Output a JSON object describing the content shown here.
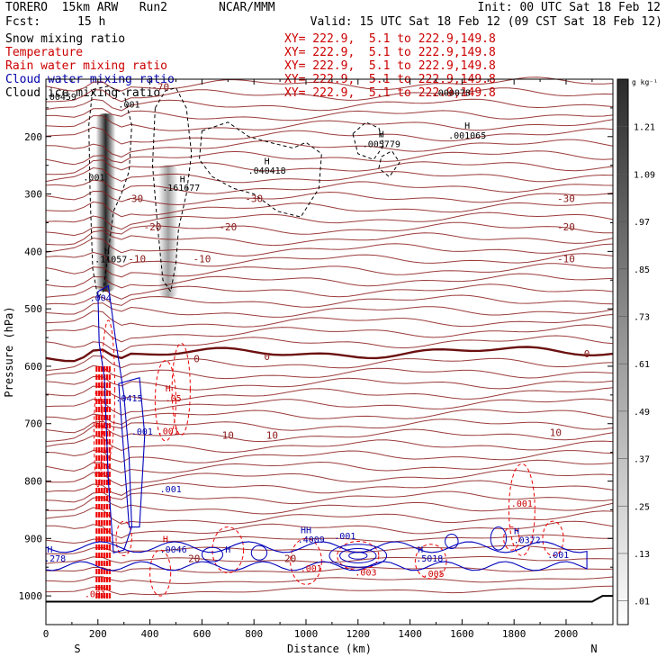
{
  "header": {
    "model": "TORERO  15km ARW   Run2",
    "center": "NCAR/MMM",
    "init": "Init: 00 UTC Sat 18 Feb 12",
    "fcst_label": "Fcst:",
    "fcst_value": "15 h",
    "valid": "Valid: 15 UTC Sat 18 Feb 12 (09 CST Sat 18 Feb 12)"
  },
  "variables": [
    {
      "name": "Snow mixing ratio",
      "xy": "XY= 222.9,  5.1 to 222.9,149.8",
      "color": "#000000"
    },
    {
      "name": "Temperature",
      "xy": "XY= 222.9,  5.1 to 222.9,149.8",
      "color": "#cc0000"
    },
    {
      "name": "Rain water mixing ratio",
      "xy": "XY= 222.9,  5.1 to 222.9,149.8",
      "color": "#cc0000"
    },
    {
      "name": "Cloud water mixing ratio",
      "xy": "XY= 222.9,  5.1 to 222.9,149.8",
      "color": "#0000aa"
    },
    {
      "name": "Cloud ice mixing ratio",
      "xy": "XY= 222.9,  5.1 to 222.9,149.8",
      "color": "#000000"
    }
  ],
  "chart_data": {
    "type": "contour",
    "xlabel": "Distance (km)",
    "ylabel": "Pressure (hPa)",
    "xlim": [
      0,
      2180
    ],
    "ylim": [
      1050,
      100
    ],
    "x_ticks": [
      0,
      200,
      400,
      600,
      800,
      1000,
      1200,
      1400,
      1600,
      1800,
      2000
    ],
    "y_ticks": [
      200,
      300,
      400,
      500,
      600,
      700,
      800,
      900,
      1000
    ],
    "x_end_labels": {
      "left": "S",
      "right": "N"
    },
    "colorbar": {
      "unit": "g kg⁻¹",
      "levels": [
        0.01,
        0.13,
        0.25,
        0.37,
        0.49,
        0.61,
        0.73,
        0.85,
        0.97,
        1.09,
        1.21
      ],
      "level_labels": [
        ".01",
        ".13",
        ".25",
        ".37",
        ".49",
        ".61",
        ".73",
        ".85",
        ".97",
        "1.09",
        "1.21"
      ]
    },
    "isotherms": [
      {
        "label": "-70",
        "pressure": 115
      },
      {
        "label": "-30",
        "pressure": 325
      },
      {
        "label": "-20",
        "pressure": 370
      },
      {
        "label": "-10",
        "pressure": 430
      },
      {
        "label": "0",
        "pressure": 572,
        "freezing": true
      },
      {
        "label": "10",
        "pressure": 725
      },
      {
        "label": "20",
        "pressure": 890
      }
    ],
    "temperature_label_positions": [
      {
        "label": "-70",
        "x": 440,
        "p": 113
      },
      {
        "label": "-30",
        "x": 340,
        "p": 308
      },
      {
        "label": "-30",
        "x": 800,
        "p": 308
      },
      {
        "label": "-30",
        "x": 2000,
        "p": 308
      },
      {
        "label": "-20",
        "x": 410,
        "p": 357
      },
      {
        "label": "-20",
        "x": 700,
        "p": 357
      },
      {
        "label": "-20",
        "x": 2000,
        "p": 357
      },
      {
        "label": "-10",
        "x": 350,
        "p": 413
      },
      {
        "label": "-10",
        "x": 600,
        "p": 413
      },
      {
        "label": "-10",
        "x": 2000,
        "p": 413
      },
      {
        "label": "0",
        "x": 580,
        "p": 587
      },
      {
        "label": "0",
        "x": 850,
        "p": 583
      },
      {
        "label": "0",
        "x": 2080,
        "p": 578
      },
      {
        "label": "10",
        "x": 700,
        "p": 720
      },
      {
        "label": "10",
        "x": 870,
        "p": 720
      },
      {
        "label": "10",
        "x": 1960,
        "p": 715
      },
      {
        "label": "20",
        "x": 570,
        "p": 935
      },
      {
        "label": "20",
        "x": 940,
        "p": 935
      }
    ],
    "snow_axis": [
      {
        "x": 230,
        "p_top": 160,
        "p_bottom": 470,
        "intensity": 1.2
      },
      {
        "x": 470,
        "p_top": 250,
        "p_bottom": 480,
        "intensity": 0.25
      }
    ],
    "extrema_labels": [
      {
        "text": ".00459",
        "x": 55,
        "p": 130,
        "color": "#000000"
      },
      {
        "text": ".001",
        "x": 320,
        "p": 143,
        "color": "#000000"
      },
      {
        "text": ".001",
        "x": 185,
        "p": 270,
        "color": "#000000"
      },
      {
        "text": "H",
        "x": 525,
        "p": 273,
        "color": "#000000"
      },
      {
        "text": ".161677",
        "x": 520,
        "p": 288,
        "color": "#000000"
      },
      {
        "text": "H",
        "x": 850,
        "p": 242,
        "color": "#000000"
      },
      {
        "text": ".040418",
        "x": 850,
        "p": 258,
        "color": "#000000"
      },
      {
        "text": "H",
        "x": 1290,
        "p": 195,
        "color": "#000000"
      },
      {
        "text": ".005779",
        "x": 1290,
        "p": 212,
        "color": "#000000"
      },
      {
        "text": "H",
        "x": 1620,
        "p": 180,
        "color": "#000000"
      },
      {
        "text": ".001065",
        "x": 1620,
        "p": 197,
        "color": "#000000"
      },
      {
        "text": ".000078",
        "x": 1560,
        "p": 123,
        "color": "#000000"
      },
      {
        "text": "H",
        "x": 235,
        "p": 398,
        "color": "#000000"
      },
      {
        "text": ".11057",
        "x": 250,
        "p": 413,
        "color": "#000000"
      },
      {
        "text": ".004",
        "x": 210,
        "p": 480,
        "color": "#0000aa"
      },
      {
        "text": ".001",
        "x": 370,
        "p": 713,
        "color": "#0000aa"
      },
      {
        "text": ".001",
        "x": 480,
        "p": 813,
        "color": "#0000aa"
      },
      {
        "text": ".001",
        "x": 470,
        "p": 712,
        "color": "#cc0000"
      },
      {
        "text": "H",
        "x": 470,
        "p": 638,
        "color": "#cc0000"
      },
      {
        "text": ".05",
        "x": 490,
        "p": 655,
        "color": "#cc0000"
      },
      {
        "text": ".0415",
        "x": 320,
        "p": 655,
        "color": "#0000aa"
      },
      {
        "text": "H",
        "x": 200,
        "p": 700,
        "color": "#cc0000"
      },
      {
        "text": "H",
        "x": 460,
        "p": 900,
        "color": "#cc0000"
      },
      {
        "text": ".0046",
        "x": 490,
        "p": 918,
        "color": "#0000aa"
      },
      {
        "text": "H",
        "x": 700,
        "p": 918,
        "color": "#0000aa"
      },
      {
        "text": "HH",
        "x": 1000,
        "p": 885,
        "color": "#0000aa"
      },
      {
        "text": ".4009",
        "x": 1020,
        "p": 901,
        "color": "#0000aa"
      },
      {
        "text": ".001",
        "x": 1150,
        "p": 895,
        "color": "#0000aa"
      },
      {
        "text": ".001",
        "x": 1020,
        "p": 951,
        "color": "#cc0000"
      },
      {
        "text": ".003",
        "x": 1230,
        "p": 958,
        "color": "#cc0000"
      },
      {
        "text": "H",
        "x": 1440,
        "p": 918,
        "color": "#0000aa"
      },
      {
        "text": ".5018",
        "x": 1475,
        "p": 934,
        "color": "#0000aa"
      },
      {
        "text": ".005",
        "x": 1490,
        "p": 961,
        "color": "#cc0000"
      },
      {
        "text": ".001",
        "x": 1830,
        "p": 838,
        "color": "#cc0000"
      },
      {
        "text": "H",
        "x": 1810,
        "p": 886,
        "color": "#0000aa"
      },
      {
        "text": ".0372",
        "x": 1850,
        "p": 902,
        "color": "#0000aa"
      },
      {
        "text": ".001",
        "x": 1970,
        "p": 928,
        "color": "#0000aa"
      },
      {
        "text": "H",
        "x": 15,
        "p": 918,
        "color": "#0000aa"
      },
      {
        "text": ".278",
        "x": 35,
        "p": 934,
        "color": "#0000aa"
      },
      {
        "text": ".001",
        "x": 190,
        "p": 996,
        "color": "#cc0000"
      }
    ]
  }
}
